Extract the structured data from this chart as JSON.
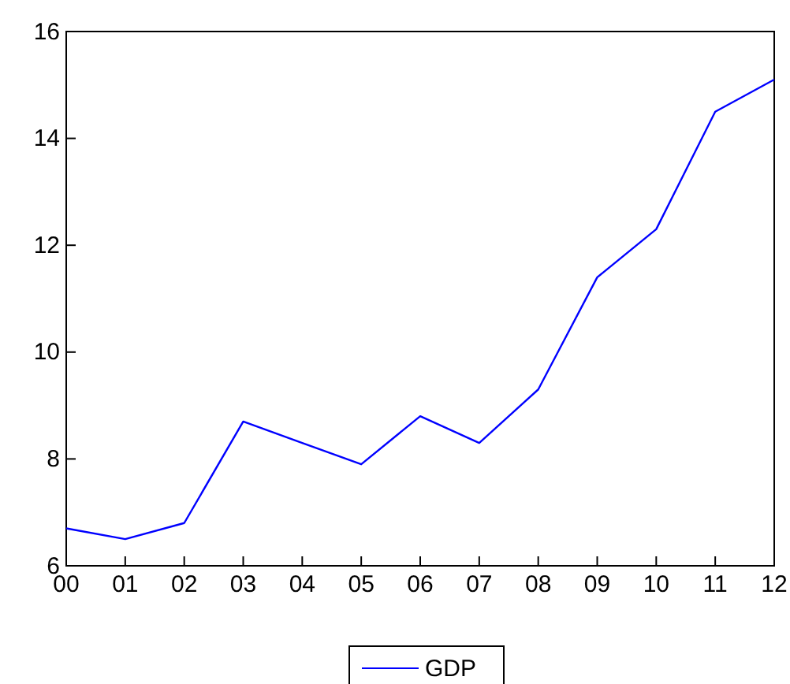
{
  "chart_data": {
    "type": "line",
    "categories": [
      "00",
      "01",
      "02",
      "03",
      "04",
      "05",
      "06",
      "07",
      "08",
      "09",
      "10",
      "11",
      "12"
    ],
    "series": [
      {
        "name": "GDP",
        "color": "#0000ff",
        "values": [
          6.7,
          6.5,
          6.8,
          8.7,
          8.3,
          7.9,
          8.8,
          8.3,
          9.3,
          11.4,
          12.3,
          14.5,
          15.1
        ]
      }
    ],
    "ylim": [
      6,
      16
    ],
    "yticks": [
      6,
      8,
      10,
      12,
      14,
      16
    ],
    "grid": false,
    "legend": "bottom",
    "marker": "none",
    "line_style": "solid"
  }
}
